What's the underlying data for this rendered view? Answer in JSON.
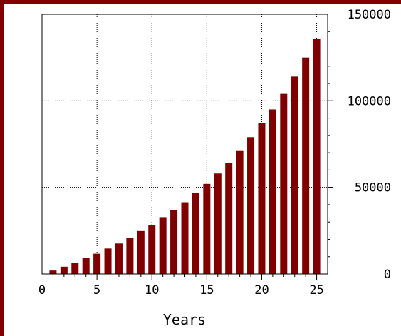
{
  "chart_data": {
    "type": "bar",
    "xlabel": "Years",
    "ylabel": "",
    "title": "",
    "xlim": [
      0,
      26
    ],
    "ylim": [
      0,
      150000
    ],
    "x_ticks": [
      0,
      5,
      10,
      15,
      20,
      25
    ],
    "y_ticks": [
      0,
      50000,
      100000,
      150000
    ],
    "y_axis_position": "right",
    "grid": true,
    "bar_color": "#800000",
    "frame_color": "#800000",
    "categories": [
      1,
      2,
      3,
      4,
      5,
      6,
      7,
      8,
      9,
      10,
      11,
      12,
      13,
      14,
      15,
      16,
      17,
      18,
      19,
      20,
      21,
      22,
      23,
      24,
      25
    ],
    "values": [
      2000,
      4200,
      6600,
      9100,
      11700,
      14700,
      17600,
      20700,
      24800,
      28400,
      32800,
      37000,
      41400,
      46800,
      52000,
      58000,
      64000,
      71400,
      79000,
      87000,
      95000,
      104000,
      114000,
      125000,
      136000
    ]
  }
}
